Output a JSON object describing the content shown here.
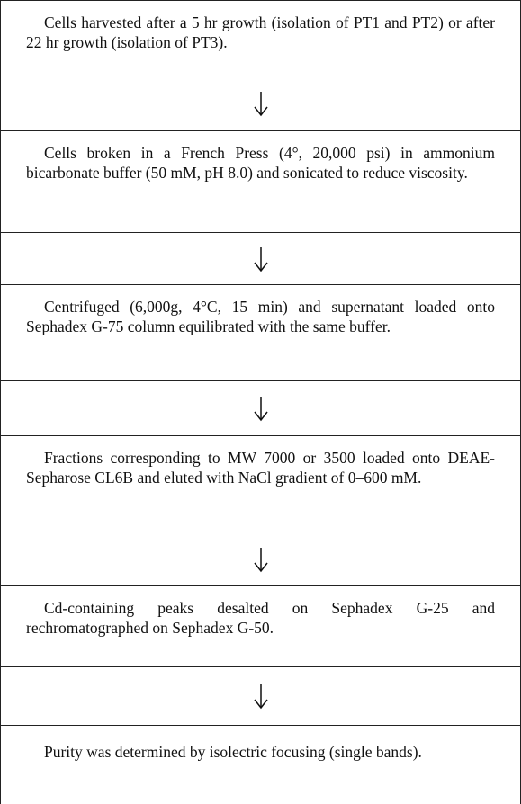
{
  "steps": [
    "Cells harvested after a 5 hr growth (isolation of PT1 and PT2) or after 22 hr growth (isolation of PT3).",
    "Cells broken in a French Press (4°, 20,000 psi) in ammonium bicarbonate buffer (50 mM, pH 8.0) and sonicated to reduce viscosity.",
    "Centrifuged (6,000g, 4°C, 15 min) and supernatant loaded onto Sephadex G-75 column equilibrated with the same buffer.",
    "Fractions corresponding to MW 7000 or 3500 loaded onto DEAE-Sepharose CL6B and eluted with NaCl gradient of 0–600 mM.",
    "Cd-containing peaks desalted on Sephadex G-25 and rechromatographed on Sephadex G-50.",
    "Purity was determined by isolectric focusing (single bands)."
  ]
}
